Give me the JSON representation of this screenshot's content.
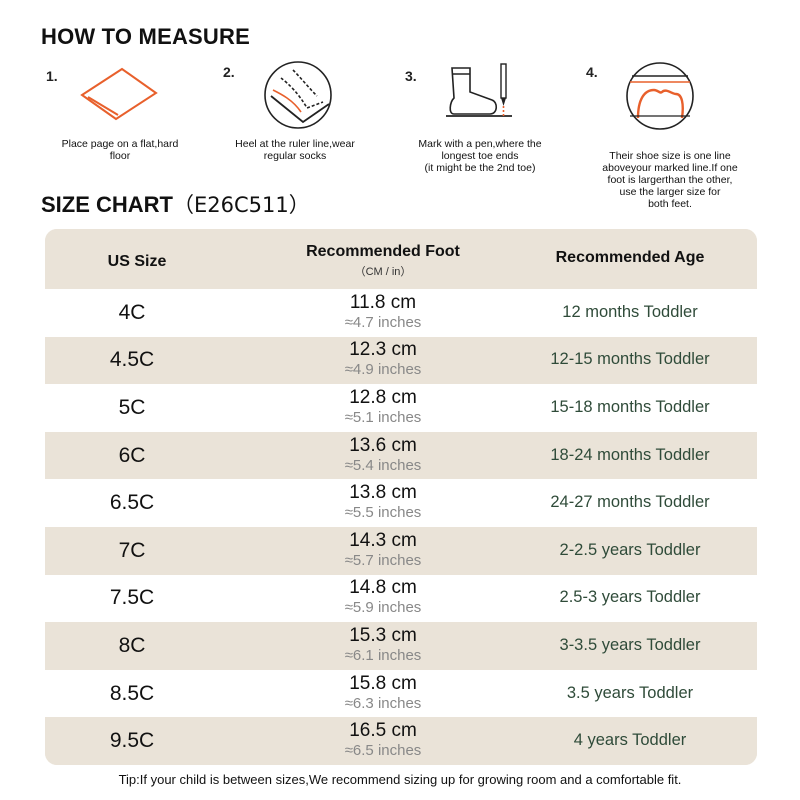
{
  "how_to": {
    "title": "HOW TO MEASURE",
    "steps": [
      {
        "num": "1.",
        "caption": "Place page on a flat,hard\nfloor",
        "icon": "paper-icon"
      },
      {
        "num": "2.",
        "caption": "Heel at the ruler line,wear\nregular socks",
        "icon": "heel-ruler-icon"
      },
      {
        "num": "3.",
        "caption": "Mark with a pen,where the\nlongest toe ends\n(it might be the 2nd toe)",
        "icon": "sock-pen-icon"
      },
      {
        "num": "4.",
        "caption": "Their shoe size is one line\naboveyour marked line.If one\nfoot is largerthan the other,\nuse the larger size for\nboth feet.",
        "icon": "toe-line-icon"
      }
    ]
  },
  "size_chart": {
    "title": "SIZE CHART",
    "code": "（E26C511）",
    "headers": {
      "us": "US Size",
      "foot": "Recommended Foot",
      "foot_unit": "（CM / in）",
      "age": "Recommended Age"
    },
    "rows": [
      {
        "us": "4C",
        "cm": "11.8 cm",
        "inch": "≈4.7 inches",
        "age": "12 months Toddler"
      },
      {
        "us": "4.5C",
        "cm": "12.3 cm",
        "inch": "≈4.9 inches",
        "age": "12-15 months Toddler"
      },
      {
        "us": "5C",
        "cm": "12.8 cm",
        "inch": "≈5.1 inches",
        "age": "15-18 months Toddler"
      },
      {
        "us": "6C",
        "cm": "13.6 cm",
        "inch": "≈5.4 inches",
        "age": "18-24 months Toddler"
      },
      {
        "us": "6.5C",
        "cm": "13.8 cm",
        "inch": "≈5.5 inches",
        "age": "24-27 months Toddler"
      },
      {
        "us": "7C",
        "cm": "14.3 cm",
        "inch": "≈5.7 inches",
        "age": "2-2.5 years Toddler"
      },
      {
        "us": "7.5C",
        "cm": "14.8 cm",
        "inch": "≈5.9 inches",
        "age": "2.5-3 years Toddler"
      },
      {
        "us": "8C",
        "cm": "15.3 cm",
        "inch": "≈6.1 inches",
        "age": "3-3.5 years Toddler"
      },
      {
        "us": "8.5C",
        "cm": "15.8 cm",
        "inch": "≈6.3 inches",
        "age": "3.5 years Toddler"
      },
      {
        "us": "9.5C",
        "cm": "16.5 cm",
        "inch": "≈6.5 inches",
        "age": "4 years Toddler"
      }
    ]
  },
  "tip": "Tip:If your child is between sizes,We recommend sizing up for growing room and a comfortable fit.",
  "colors": {
    "accent": "#e8602c",
    "beige": "#eae3d8",
    "age_text": "#2f4b39",
    "inch_text": "#888888"
  }
}
